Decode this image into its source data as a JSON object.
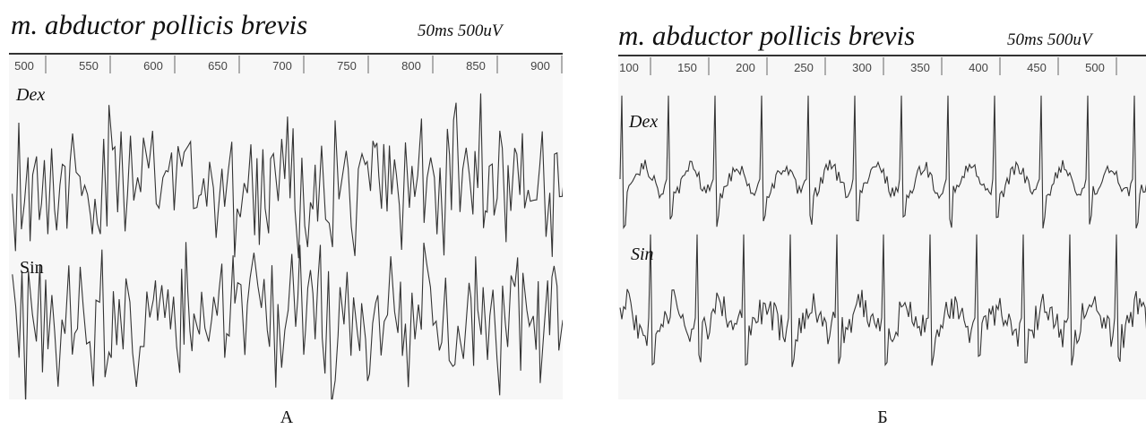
{
  "panels": [
    {
      "title": "m. abductor pollicis brevis",
      "scale": "50ms 500uV",
      "ticks": [
        500,
        550,
        600,
        650,
        700,
        750,
        800,
        850,
        900
      ],
      "traces": [
        "Dex",
        "Sin"
      ],
      "label": "А"
    },
    {
      "title": "m. abductor pollicis brevis",
      "scale": "50ms 500uV",
      "ticks": [
        100,
        150,
        200,
        250,
        300,
        350,
        400,
        450,
        500
      ],
      "traces": [
        "Dex",
        "Sin"
      ],
      "label": "Б"
    }
  ]
}
